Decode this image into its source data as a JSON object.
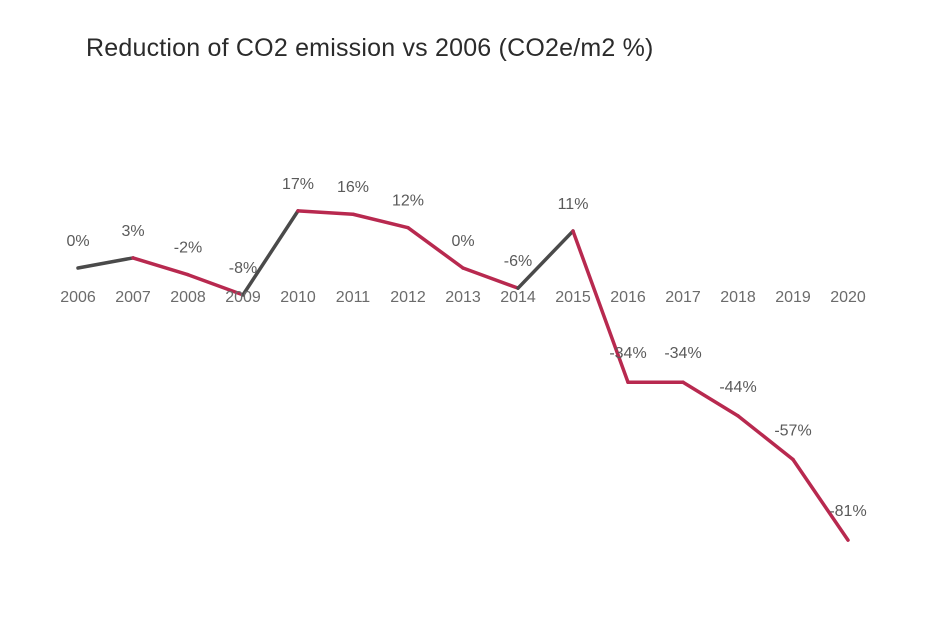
{
  "chart_data": {
    "type": "line",
    "title": "Reduction of CO2 emission vs 2006 (CO2e/m2 %)",
    "xlabel": "",
    "ylabel": "",
    "categories": [
      "2006",
      "2007",
      "2008",
      "2009",
      "2010",
      "2011",
      "2012",
      "2013",
      "2014",
      "2015",
      "2016",
      "2017",
      "2018",
      "2019",
      "2020"
    ],
    "series": [
      {
        "values": [
          0,
          3,
          -2,
          -8,
          17,
          16,
          12,
          0,
          -6,
          11,
          -34,
          -34,
          -44,
          -57,
          -81
        ]
      }
    ],
    "data_labels": [
      "0%",
      "3%",
      "-2%",
      "-8%",
      "17%",
      "16%",
      "12%",
      "0%",
      "-6%",
      "11%",
      "-34%",
      "-34%",
      "-44%",
      "-57%",
      "-81%"
    ],
    "ylim": [
      -85,
      20
    ],
    "grid": false,
    "legend": "none",
    "colors": {
      "decrease": "#b8294f",
      "increase": "#4a4a4a"
    }
  }
}
